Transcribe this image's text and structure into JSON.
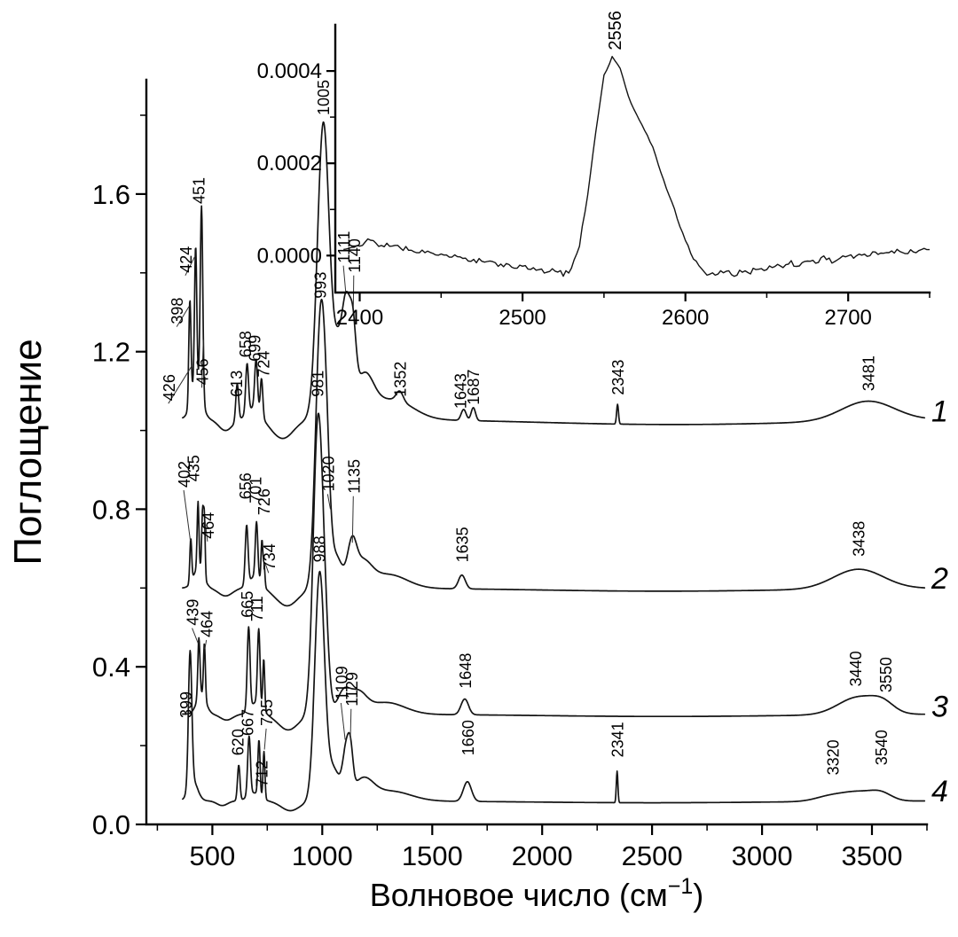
{
  "figure": {
    "bg": "#ffffff",
    "ink": "#000000"
  },
  "chart_data": {
    "type": "line",
    "title": "",
    "main": {
      "ylabel": "Поглощение",
      "xlabel_pre": "Волновое число  (см",
      "xlabel_sup": "−1",
      "xlabel_post": ")",
      "xlim": [
        200,
        3750
      ],
      "ylim": [
        0,
        1.89
      ],
      "x_ticks": [
        500,
        1000,
        1500,
        2000,
        2500,
        3000,
        3500
      ],
      "x_minor_ticks": [
        250,
        750,
        1250,
        1750,
        2250,
        2750,
        3250,
        3750
      ],
      "y_ticks": [
        0,
        0.4,
        0.8,
        1.2,
        1.6
      ],
      "y_tick_labels": [
        "0.0",
        "0.4",
        "0.8",
        "1.2",
        "1.6"
      ],
      "y_minor_ticks": [
        0.2,
        0.6,
        1.0,
        1.4,
        1.8
      ],
      "sampling": {
        "x_start": 365,
        "x_end": 3740,
        "step": 2
      },
      "series": [
        {
          "name": "1",
          "offset": 1.03,
          "label_y": 1.05,
          "peaks": [
            [
              398,
              0.26,
              7
            ],
            [
              424,
              0.34,
              7
            ],
            [
              451,
              0.48,
              8
            ],
            [
              428,
              0.1,
              32
            ],
            [
              560,
              -0.03,
              45
            ],
            [
              613,
              0.095,
              9
            ],
            [
              658,
              0.125,
              9
            ],
            [
              699,
              0.125,
              9
            ],
            [
              724,
              0.095,
              8
            ],
            [
              690,
              0.03,
              40
            ],
            [
              820,
              -0.05,
              70
            ],
            [
              1005,
              0.75,
              38
            ],
            [
              1075,
              0.18,
              35
            ],
            [
              1111,
              0.22,
              25
            ],
            [
              1140,
              0.16,
              20
            ],
            [
              1190,
              0.1,
              60
            ],
            [
              1320,
              0.05,
              130
            ],
            [
              1352,
              0.025,
              22
            ],
            [
              1643,
              0.028,
              16
            ],
            [
              1687,
              0.033,
              14
            ],
            [
              2343,
              0.05,
              6
            ],
            [
              2600,
              -0.015,
              900
            ],
            [
              3481,
              0.05,
              170
            ]
          ],
          "annotations": [
            {
              "t": "426",
              "x": 300,
              "y": 1.075,
              "lead": [
                408,
                1.165
              ]
            },
            {
              "t": "398",
              "x": 338,
              "y": 1.27,
              "lead": [
                394,
                1.315
              ]
            },
            {
              "t": "424",
              "x": 377,
              "y": 1.4,
              "lead": [
                419,
                1.44
              ]
            },
            {
              "t": "451",
              "x": 437,
              "y": 1.575
            },
            {
              "t": "456",
              "x": 452,
              "y": 1.115,
              "lead": [
                459,
                1.23
              ]
            },
            {
              "t": "613",
              "x": 607,
              "y": 1.085
            },
            {
              "t": "658",
              "x": 647,
              "y": 1.185
            },
            {
              "t": "699",
              "x": 690,
              "y": 1.175
            },
            {
              "t": "724",
              "x": 731,
              "y": 1.135
            },
            {
              "t": "1005",
              "x": 1002,
              "y": 1.8
            },
            {
              "t": "1111",
              "x": 1096,
              "y": 1.425,
              "lead": [
                1107,
                1.35
              ]
            },
            {
              "t": "1140",
              "x": 1143,
              "y": 1.4,
              "lead": [
                1141,
                1.31
              ]
            },
            {
              "t": "1352",
              "x": 1352,
              "y": 1.085
            },
            {
              "t": "1643",
              "x": 1626,
              "y": 1.055
            },
            {
              "t": "1687",
              "x": 1684,
              "y": 1.065
            },
            {
              "t": "2343",
              "x": 2343,
              "y": 1.09
            },
            {
              "t": "3481",
              "x": 3481,
              "y": 1.1
            }
          ]
        },
        {
          "name": "2",
          "offset": 0.6,
          "label_y": 0.625,
          "peaks": [
            [
              402,
              0.11,
              6
            ],
            [
              435,
              0.17,
              6
            ],
            [
              456,
              0.16,
              6
            ],
            [
              464,
              0.14,
              5
            ],
            [
              437,
              0.05,
              33
            ],
            [
              560,
              -0.02,
              45
            ],
            [
              656,
              0.15,
              9
            ],
            [
              701,
              0.14,
              8
            ],
            [
              726,
              0.11,
              6
            ],
            [
              736,
              0.05,
              5
            ],
            [
              695,
              0.03,
              38
            ],
            [
              840,
              -0.045,
              70
            ],
            [
              993,
              0.69,
              32
            ],
            [
              1020,
              0.14,
              22
            ],
            [
              1060,
              0.08,
              40
            ],
            [
              1135,
              0.09,
              28
            ],
            [
              1180,
              0.06,
              60
            ],
            [
              1300,
              0.035,
              120
            ],
            [
              1635,
              0.035,
              22
            ],
            [
              2550,
              -0.008,
              800
            ],
            [
              3438,
              0.05,
              160
            ]
          ],
          "annotations": [
            {
              "t": "402",
              "x": 370,
              "y": 0.855,
              "lead": [
                400,
                0.72
              ]
            },
            {
              "t": "435",
              "x": 412,
              "y": 0.87
            },
            {
              "t": "464",
              "x": 478,
              "y": 0.725,
              "lead": [
                467,
                0.77
              ]
            },
            {
              "t": "656",
              "x": 648,
              "y": 0.825
            },
            {
              "t": "701",
              "x": 694,
              "y": 0.815
            },
            {
              "t": "726",
              "x": 733,
              "y": 0.785
            },
            {
              "t": "734",
              "x": 756,
              "y": 0.645,
              "lead": [
                739,
                0.665
              ]
            },
            {
              "t": "993",
              "x": 989,
              "y": 1.335
            },
            {
              "t": "1020",
              "x": 1024,
              "y": 0.845,
              "lead": [
                1037,
                0.8
              ]
            },
            {
              "t": "1135",
              "x": 1141,
              "y": 0.84,
              "lead": [
                1137,
                0.715
              ]
            },
            {
              "t": "1635",
              "x": 1635,
              "y": 0.665
            },
            {
              "t": "3438",
              "x": 3438,
              "y": 0.68
            }
          ]
        },
        {
          "name": "3",
          "offset": 0.28,
          "label_y": 0.3,
          "peaks": [
            [
              439,
              0.15,
              7
            ],
            [
              464,
              0.14,
              6
            ],
            [
              450,
              0.05,
              30
            ],
            [
              565,
              -0.015,
              40
            ],
            [
              665,
              0.21,
              9
            ],
            [
              711,
              0.19,
              8
            ],
            [
              734,
              0.13,
              6
            ],
            [
              700,
              0.03,
              36
            ],
            [
              845,
              -0.04,
              65
            ],
            [
              981,
              0.745,
              31
            ],
            [
              1015,
              0.13,
              24
            ],
            [
              1095,
              0.05,
              40
            ],
            [
              1160,
              0.05,
              55
            ],
            [
              1290,
              0.03,
              120
            ],
            [
              1648,
              0.04,
              24
            ],
            [
              2550,
              -0.006,
              800
            ],
            [
              3440,
              0.045,
              130
            ],
            [
              3550,
              0.02,
              70
            ]
          ],
          "annotations": [
            {
              "t": "439",
              "x": 408,
              "y": 0.505,
              "lead": [
                435,
                0.46
              ]
            },
            {
              "t": "464",
              "x": 473,
              "y": 0.475,
              "lead": [
                466,
                0.445
              ]
            },
            {
              "t": "665",
              "x": 655,
              "y": 0.525
            },
            {
              "t": "711",
              "x": 701,
              "y": 0.515
            },
            {
              "t": "981",
              "x": 977,
              "y": 1.085
            },
            {
              "t": "1648",
              "x": 1648,
              "y": 0.345
            },
            {
              "t": "3440",
              "x": 3424,
              "y": 0.35
            },
            {
              "t": "3550",
              "x": 3560,
              "y": 0.335
            }
          ]
        },
        {
          "name": "4",
          "offset": 0.06,
          "label_y": 0.085,
          "peaks": [
            [
              399,
              0.34,
              11
            ],
            [
              412,
              0.05,
              30
            ],
            [
              545,
              -0.012,
              35
            ],
            [
              620,
              0.09,
              8
            ],
            [
              667,
              0.15,
              9
            ],
            [
              712,
              0.14,
              7
            ],
            [
              735,
              0.12,
              6
            ],
            [
              690,
              0.02,
              40
            ],
            [
              855,
              -0.025,
              60
            ],
            [
              988,
              0.575,
              31
            ],
            [
              1050,
              0.08,
              40
            ],
            [
              1109,
              0.115,
              22
            ],
            [
              1129,
              0.08,
              16
            ],
            [
              1185,
              0.05,
              65
            ],
            [
              1310,
              0.025,
              130
            ],
            [
              1660,
              0.05,
              26
            ],
            [
              2341,
              0.08,
              5
            ],
            [
              2500,
              -0.005,
              800
            ],
            [
              3320,
              0.015,
              100
            ],
            [
              3440,
              0.02,
              90
            ],
            [
              3540,
              0.02,
              70
            ]
          ],
          "annotations": [
            {
              "t": "399",
              "x": 378,
              "y": 0.27
            },
            {
              "t": "620",
              "x": 613,
              "y": 0.175
            },
            {
              "t": "667",
              "x": 657,
              "y": 0.225
            },
            {
              "t": "712",
              "x": 722,
              "y": 0.095
            },
            {
              "t": "735",
              "x": 745,
              "y": 0.25,
              "lead": [
                737,
                0.19
              ]
            },
            {
              "t": "988",
              "x": 984,
              "y": 0.665
            },
            {
              "t": "1109",
              "x": 1085,
              "y": 0.315,
              "lead": [
                1104,
                0.215
              ]
            },
            {
              "t": "1129",
              "x": 1131,
              "y": 0.3,
              "lead": [
                1128,
                0.215
              ]
            },
            {
              "t": "1660",
              "x": 1660,
              "y": 0.175
            },
            {
              "t": "2341",
              "x": 2341,
              "y": 0.17
            },
            {
              "t": "3320",
              "x": 3320,
              "y": 0.125
            },
            {
              "t": "3540",
              "x": 3540,
              "y": 0.15
            }
          ]
        }
      ]
    },
    "inset": {
      "xlim": [
        2385,
        2750
      ],
      "ylim_e4": [
        -0.8,
        5.0
      ],
      "x_ticks": [
        2400,
        2500,
        2600,
        2700
      ],
      "x_minor_ticks": [
        2450,
        2550,
        2650,
        2750
      ],
      "y_ticks_e4": [
        0,
        2,
        4
      ],
      "y_tick_labels": [
        "0.0000",
        "0.0002",
        "0.0004"
      ],
      "y_minor_ticks_e4": [
        1,
        3
      ],
      "peak_label": {
        "text": "2556",
        "x": 2556,
        "y_e4": 4.45
      },
      "x_start": 2390,
      "x_step": 5,
      "values_e4": [
        0.1,
        0.16,
        0.22,
        0.34,
        0.27,
        0.2,
        0.26,
        0.12,
        0.17,
        0.06,
        0.11,
        0.02,
        0.06,
        -0.04,
        0.01,
        -0.09,
        -0.13,
        -0.08,
        -0.16,
        -0.22,
        -0.17,
        -0.26,
        -0.21,
        -0.31,
        -0.27,
        -0.37,
        -0.31,
        -0.41,
        -0.3,
        0.25,
        1.3,
        2.7,
        3.9,
        4.3,
        4.05,
        3.45,
        3.05,
        2.72,
        2.35,
        1.8,
        1.3,
        0.85,
        0.35,
        -0.05,
        -0.28,
        -0.43,
        -0.37,
        -0.33,
        -0.44,
        -0.31,
        -0.36,
        -0.26,
        -0.31,
        -0.21,
        -0.26,
        -0.16,
        -0.21,
        -0.11,
        -0.16,
        -0.06,
        -0.11,
        -0.02,
        -0.06,
        0.02,
        -0.02,
        0.06,
        0.02,
        0.08,
        0.12,
        0.07,
        0.13,
        0.09,
        0.13
      ]
    }
  }
}
